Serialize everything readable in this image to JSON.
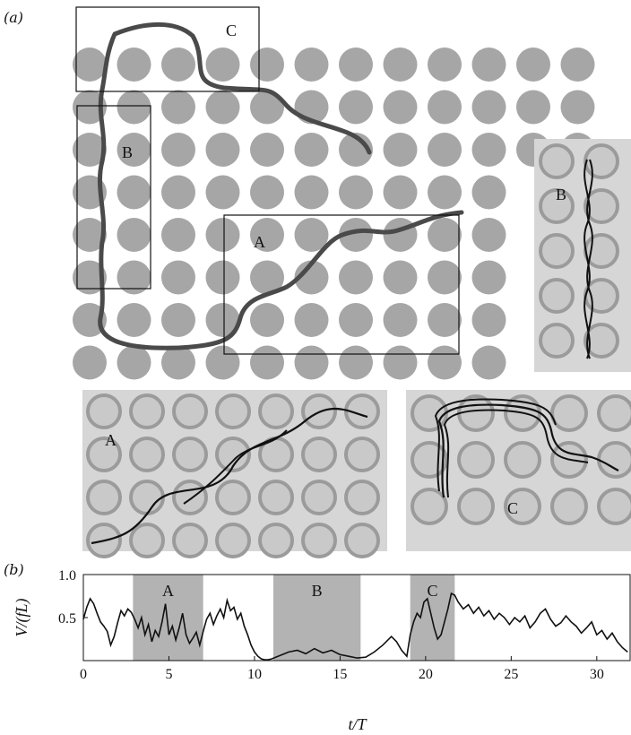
{
  "figure": {
    "panel_a_label": "(a)",
    "panel_b_label": "(b)",
    "region_labels": {
      "A": "A",
      "B": "B",
      "C": "C"
    }
  },
  "colors": {
    "pillar": "#a6a6a6",
    "trail": "#4a4a4a",
    "photo_bg": "#d6d6d6",
    "photo_pillar": "#9b9b9b",
    "shade": "#b3b3b3"
  },
  "chart_data": {
    "type": "line",
    "xlabel": "t/T",
    "ylabel": "V/(fL)",
    "xlim": [
      0,
      32
    ],
    "ylim": [
      0,
      1.0
    ],
    "xticks": [
      0,
      5,
      10,
      15,
      20,
      25,
      30
    ],
    "yticks": [
      0.5,
      1.0
    ],
    "ytick_labels": [
      "0.5",
      "1.0"
    ],
    "shaded_regions": [
      {
        "label": "A",
        "x0": 2.9,
        "x1": 7.0
      },
      {
        "label": "B",
        "x0": 11.1,
        "x1": 16.2
      },
      {
        "label": "C",
        "x0": 19.1,
        "x1": 21.7
      }
    ],
    "series": [
      {
        "x": [
          0,
          0.2,
          0.4,
          0.6,
          0.8,
          1.0,
          1.2,
          1.4,
          1.6,
          1.8,
          2.0,
          2.2,
          2.4,
          2.6,
          2.8,
          3.0,
          3.2,
          3.4,
          3.6,
          3.8,
          4.0,
          4.2,
          4.4,
          4.6,
          4.8,
          5.0,
          5.2,
          5.4,
          5.6,
          5.8,
          6.0,
          6.2,
          6.4,
          6.6,
          6.8,
          7.0,
          7.2,
          7.4,
          7.6,
          7.8,
          8.0,
          8.2,
          8.4,
          8.6,
          8.8,
          9.0,
          9.2,
          9.4,
          9.6,
          9.8,
          10.0,
          10.2,
          10.4,
          10.6,
          10.8,
          11.0,
          11.5,
          12.0,
          12.5,
          13.0,
          13.5,
          14.0,
          14.5,
          15.0,
          15.5,
          16.0,
          16.5,
          17.0,
          17.5,
          18.0,
          18.3,
          18.6,
          18.9,
          19.1,
          19.3,
          19.5,
          19.7,
          19.9,
          20.1,
          20.3,
          20.5,
          20.7,
          20.9,
          21.1,
          21.3,
          21.5,
          21.7,
          21.9,
          22.2,
          22.5,
          22.8,
          23.1,
          23.4,
          23.7,
          24.0,
          24.3,
          24.6,
          24.9,
          25.2,
          25.5,
          25.8,
          26.1,
          26.4,
          26.7,
          27.0,
          27.3,
          27.6,
          27.9,
          28.2,
          28.5,
          28.8,
          29.1,
          29.4,
          29.7,
          30.0,
          30.3,
          30.6,
          30.9,
          31.2,
          31.5,
          31.8
        ],
        "y": [
          0.48,
          0.62,
          0.72,
          0.66,
          0.55,
          0.45,
          0.4,
          0.34,
          0.18,
          0.28,
          0.44,
          0.58,
          0.52,
          0.6,
          0.56,
          0.48,
          0.38,
          0.5,
          0.3,
          0.42,
          0.22,
          0.35,
          0.28,
          0.45,
          0.66,
          0.3,
          0.4,
          0.24,
          0.38,
          0.55,
          0.3,
          0.2,
          0.26,
          0.33,
          0.18,
          0.34,
          0.48,
          0.55,
          0.42,
          0.52,
          0.6,
          0.5,
          0.7,
          0.58,
          0.62,
          0.48,
          0.55,
          0.4,
          0.3,
          0.18,
          0.1,
          0.05,
          0.02,
          0.01,
          0.01,
          0.02,
          0.06,
          0.1,
          0.12,
          0.08,
          0.14,
          0.09,
          0.12,
          0.07,
          0.05,
          0.03,
          0.04,
          0.1,
          0.18,
          0.28,
          0.22,
          0.12,
          0.05,
          0.3,
          0.45,
          0.55,
          0.5,
          0.68,
          0.72,
          0.55,
          0.38,
          0.25,
          0.3,
          0.45,
          0.6,
          0.78,
          0.76,
          0.68,
          0.6,
          0.65,
          0.55,
          0.62,
          0.52,
          0.58,
          0.48,
          0.55,
          0.5,
          0.42,
          0.5,
          0.45,
          0.52,
          0.38,
          0.45,
          0.55,
          0.6,
          0.48,
          0.4,
          0.44,
          0.52,
          0.45,
          0.4,
          0.32,
          0.38,
          0.45,
          0.3,
          0.35,
          0.25,
          0.32,
          0.22,
          0.15,
          0.1
        ]
      }
    ]
  }
}
